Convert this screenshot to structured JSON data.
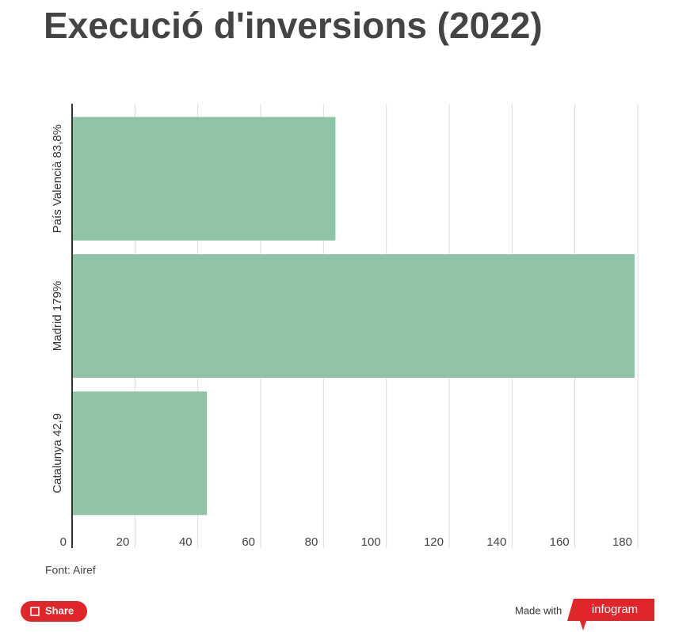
{
  "chart_data": {
    "type": "hbar",
    "title": "Execució d'inversions (2022)",
    "categories": [
      "País Valencià 83,8%",
      "Madrid 179%",
      "Catalunya 42,9"
    ],
    "values": [
      83.8,
      179,
      42.9
    ],
    "color": "#8fc4a7",
    "xlim": [
      0,
      180
    ],
    "xticks": [
      0,
      20,
      40,
      60,
      80,
      100,
      120,
      140,
      160,
      180
    ],
    "grid": true,
    "source": "Font: Airef"
  },
  "footer": {
    "share": "Share",
    "made_with": "Made with",
    "brand": "infogram"
  }
}
